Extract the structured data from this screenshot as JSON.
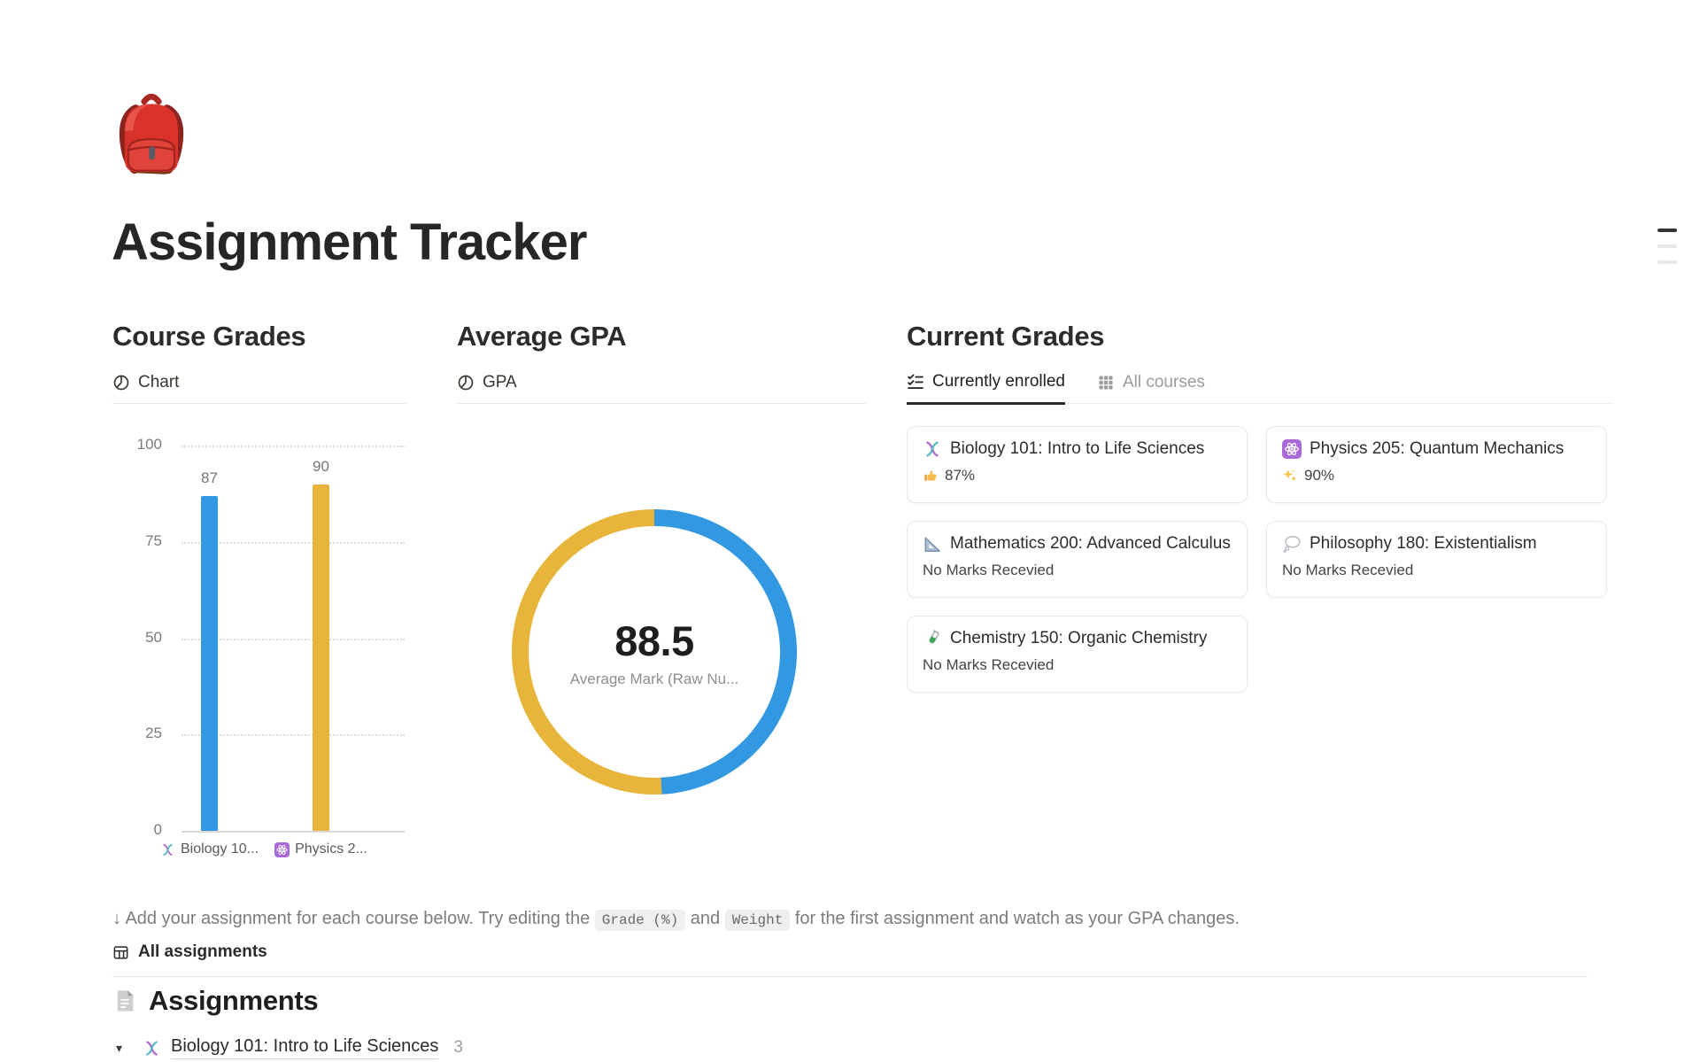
{
  "page": {
    "icon": "backpack",
    "title": "Assignment Tracker"
  },
  "toc_icon": "table-of-contents-lines",
  "course_grades": {
    "title": "Course Grades",
    "view_icon": "pie-chart",
    "view_label": "Chart",
    "chart_data": {
      "type": "bar",
      "categories": [
        "Biology 10...",
        "Physics 2..."
      ],
      "category_icons": [
        "dna",
        "atom"
      ],
      "values": [
        87,
        90
      ],
      "value_labels": [
        "87",
        "90"
      ],
      "colors": [
        "#3398e2",
        "#e7b43c"
      ],
      "ylim": [
        0,
        100
      ],
      "yticks": [
        0,
        25,
        50,
        75,
        100
      ],
      "grid": "dotted horizontal"
    }
  },
  "average_gpa": {
    "title": "Average GPA",
    "view_icon": "pie-chart",
    "view_label": "GPA",
    "chart_data": {
      "type": "pie",
      "donut": true,
      "slices": [
        {
          "label": "Biology 101",
          "value": 87,
          "color": "#3398e2"
        },
        {
          "label": "Physics 205",
          "value": 90,
          "color": "#e7b43c"
        }
      ],
      "center_value": "88.5",
      "center_label": "Average Mark (Raw Nu..."
    }
  },
  "current_grades": {
    "title": "Current Grades",
    "tabs": [
      {
        "label": "Currently enrolled",
        "icon": "checklist",
        "active": true
      },
      {
        "label": "All courses",
        "icon": "grid",
        "active": false
      }
    ],
    "cards": [
      {
        "icon": "dna",
        "title": "Biology 101: Intro to Life Sciences",
        "status_icon": "thumbs-up",
        "status": "87%"
      },
      {
        "icon": "atom",
        "title": "Physics 205: Quantum Mechanics",
        "status_icon": "sparkles",
        "status": "90%"
      },
      {
        "icon": "triangle-ruler",
        "title": "Mathematics 200: Advanced Calculus",
        "status_icon": "",
        "status": "No Marks Recevied"
      },
      {
        "icon": "thought-balloon",
        "title": "Philosophy 180: Existentialism",
        "status_icon": "",
        "status": "No Marks Recevied"
      },
      {
        "icon": "test-tube",
        "title": "Chemistry 150: Organic Chemistry",
        "status_icon": "",
        "status": "No Marks Recevied"
      }
    ]
  },
  "note": {
    "arrow": "↓",
    "text_before": "Add your assignment for each course below. Try editing the",
    "code1": "Grade (%)",
    "text_mid": "and",
    "code2": "Weight",
    "text_after": "for the first assignment and watch as your GPA changes."
  },
  "all_assignments": {
    "icon": "table",
    "label": "All assignments"
  },
  "assignments_section": {
    "icon": "page",
    "title": "Assignments",
    "toggle": {
      "arrow": "▾",
      "icon": "dna",
      "label": "Biology 101: Intro to Life Sciences",
      "count": "3"
    }
  }
}
